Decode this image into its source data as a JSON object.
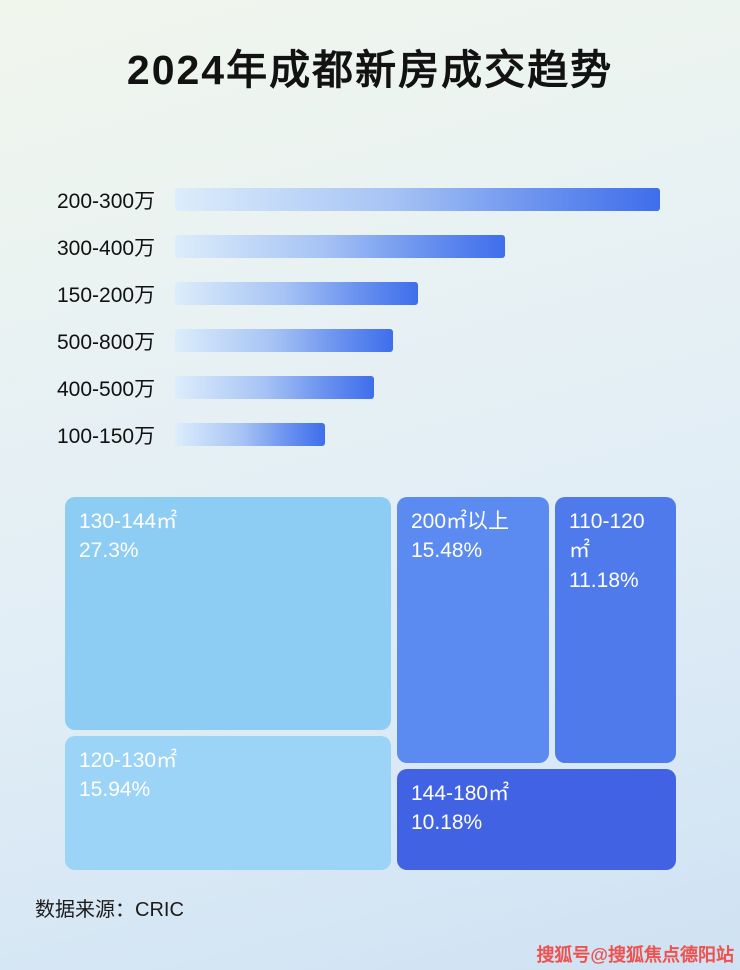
{
  "header": {
    "title": "2024年成都新房成交趋势"
  },
  "footer": {
    "source": "数据来源：CRIC",
    "watermark": "搜狐号@搜狐焦点德阳站"
  },
  "colors": {
    "bar_gradient_start": "#dcedfb",
    "bar_gradient_end": "#3e6eeb",
    "watermark_red": "#f03e38"
  },
  "chart_data": [
    {
      "type": "bar",
      "orientation": "horizontal",
      "categories": [
        "200-300万",
        "300-400万",
        "150-200万",
        "500-800万",
        "400-500万",
        "100-150万"
      ],
      "values": [
        100,
        68,
        50,
        45,
        41,
        31
      ],
      "value_unit": "relative length, percent of longest bar (no numeric axis shown)",
      "title": "",
      "xlabel": "",
      "ylabel": "",
      "grid": false,
      "legend": false
    },
    {
      "type": "treemap",
      "items": [
        {
          "label": "130-144㎡",
          "value": "27.3%",
          "color": "#8ecdf3"
        },
        {
          "label": "120-130㎡",
          "value": "15.94%",
          "color": "#9bd4f6"
        },
        {
          "label": "200㎡以上",
          "value": "15.48%",
          "color": "#5b8bf0"
        },
        {
          "label": "110-120㎡",
          "value": "11.18%",
          "color": "#4e7aec"
        },
        {
          "label": "144-180㎡",
          "value": "10.18%",
          "color": "#4163e3"
        }
      ],
      "title": "",
      "legend": false
    }
  ]
}
